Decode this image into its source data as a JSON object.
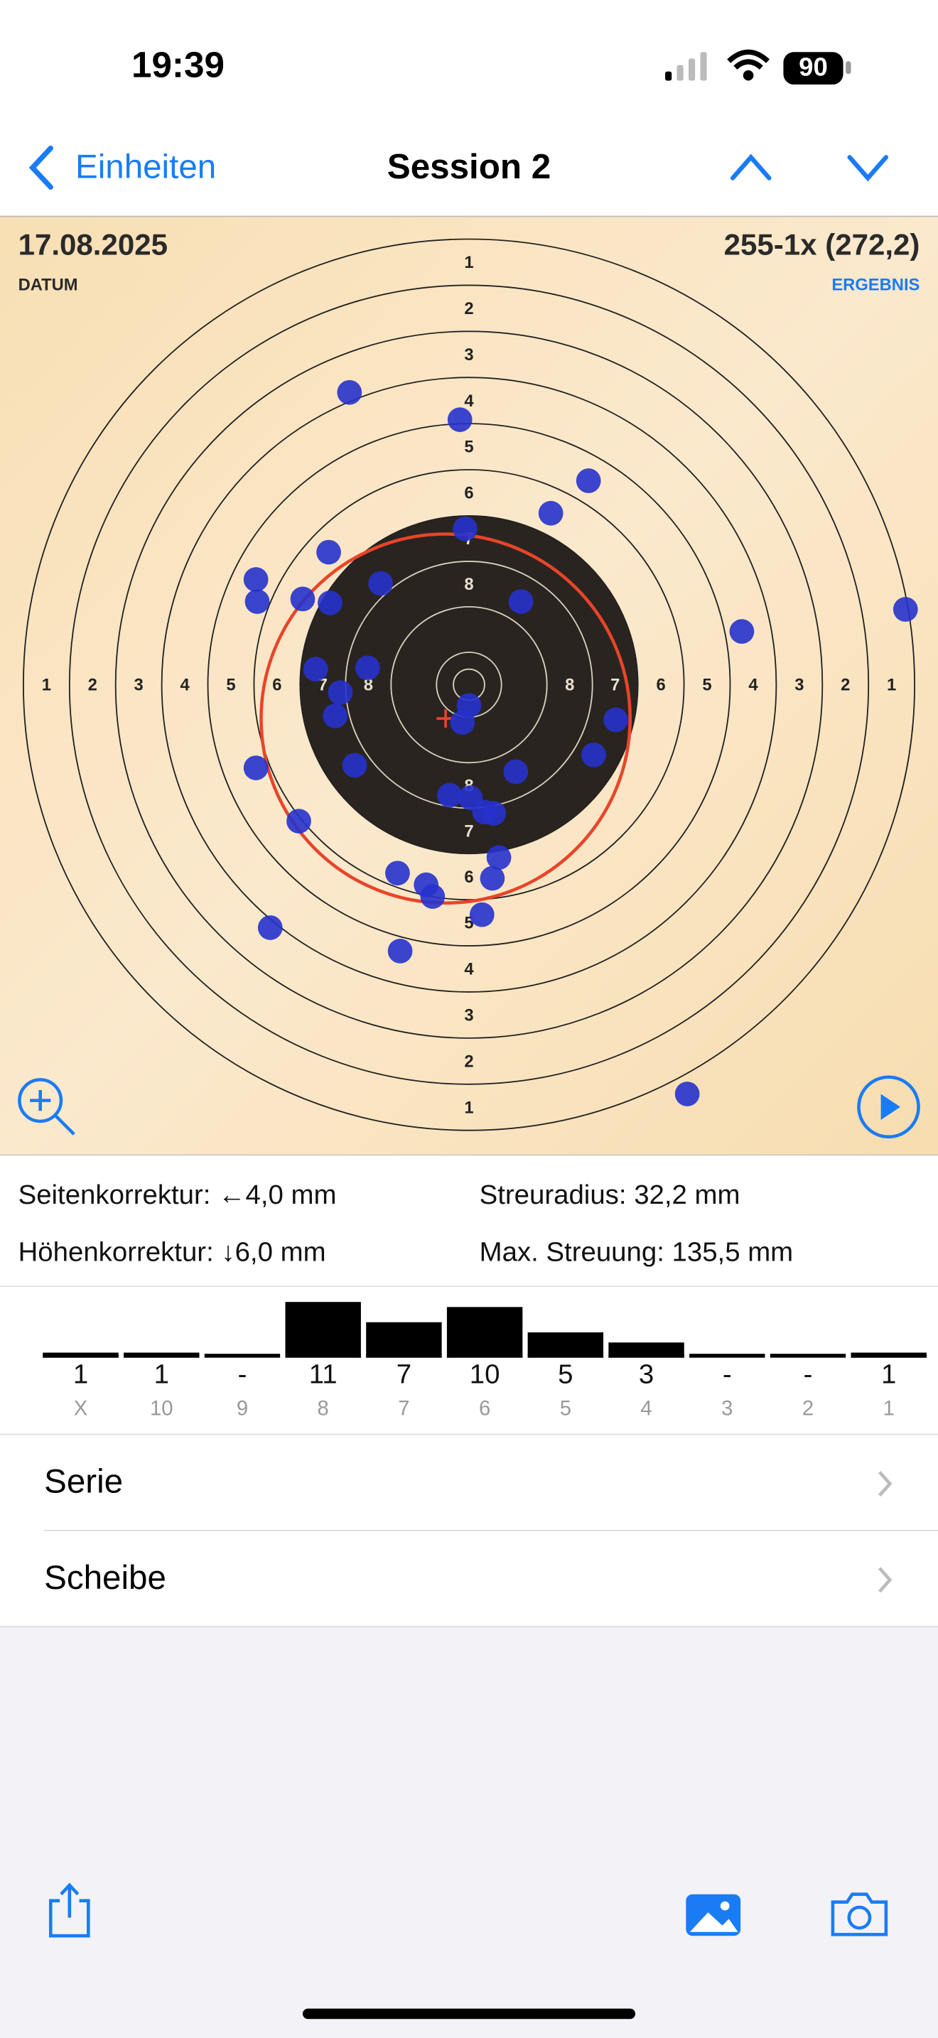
{
  "status_bar": {
    "time": "19:39",
    "battery": "90"
  },
  "nav": {
    "back": "Einheiten",
    "title": "Session 2"
  },
  "target": {
    "date": "17.08.2025",
    "date_label": "DATUM",
    "result": "255-1x (272,2)",
    "result_label": "ERGEBNIS",
    "ring_labels": [
      "1",
      "2",
      "3",
      "4",
      "5",
      "6",
      "7",
      "8"
    ]
  },
  "stats": {
    "side_correction": "Seitenkorrektur: ←4,0 mm",
    "height_correction": "Höhenkorrektur: ↓6,0 mm",
    "spread_radius": "Streuradius: 32,2 mm",
    "max_spread": "Max. Streuung: 135,5 mm"
  },
  "chart_data": {
    "type": "bar",
    "categories": [
      "X",
      "10",
      "9",
      "8",
      "7",
      "6",
      "5",
      "4",
      "3",
      "2",
      "1"
    ],
    "values": [
      1,
      1,
      0,
      11,
      7,
      10,
      5,
      3,
      0,
      0,
      1
    ],
    "value_labels": [
      "1",
      "1",
      "-",
      "11",
      "7",
      "10",
      "5",
      "3",
      "-",
      "-",
      "1"
    ],
    "color": "#000000"
  },
  "list": {
    "rows": [
      "Serie",
      "Scheibe"
    ]
  }
}
